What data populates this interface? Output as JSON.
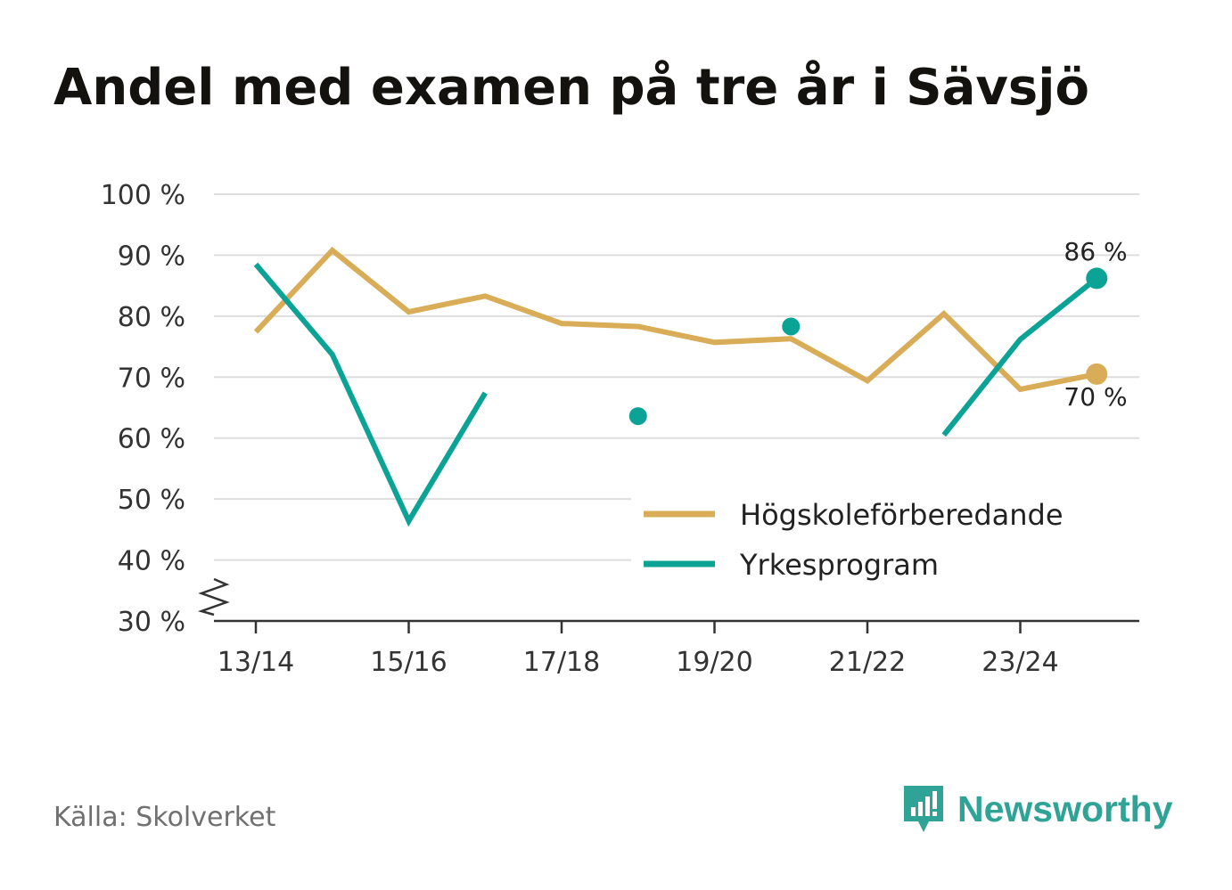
{
  "chart_data": {
    "type": "line",
    "title": "Andel med examen på tre år i Sävsjö",
    "categories": [
      "13/14",
      "14/15",
      "15/16",
      "16/17",
      "17/18",
      "18/19",
      "19/20",
      "20/21",
      "21/22",
      "22/23",
      "23/24",
      "24/25"
    ],
    "x_tick_labels": [
      "13/14",
      "15/16",
      "17/18",
      "19/20",
      "21/22",
      "23/24"
    ],
    "y_tick_labels": [
      "30 %",
      "40 %",
      "50 %",
      "60 %",
      "70 %",
      "80 %",
      "90 %",
      "100 %"
    ],
    "y_ticks": [
      30,
      40,
      50,
      60,
      70,
      80,
      90,
      100
    ],
    "ylim": [
      30,
      100
    ],
    "y_axis_break": true,
    "grid": true,
    "legend_position": "bottom-right",
    "series": [
      {
        "name": "Högskoleförberedande",
        "color": "#d9ad57",
        "values": [
          77.4,
          90.8,
          80.7,
          83.3,
          78.8,
          78.3,
          75.7,
          76.3,
          69.4,
          80.4,
          68.0,
          70.5
        ],
        "end_label": "70 %"
      },
      {
        "name": "Yrkesprogram",
        "color": "#0aa395",
        "values": [
          88.5,
          73.7,
          46.4,
          67.4,
          null,
          63.6,
          null,
          78.3,
          null,
          60.5,
          76.2,
          86.2
        ],
        "end_label": "86 %"
      }
    ]
  },
  "source": "Källa: Skolverket",
  "brand": {
    "name": "Newsworthy",
    "color": "#2fa395",
    "icon": "newsworthy-logo-icon"
  }
}
